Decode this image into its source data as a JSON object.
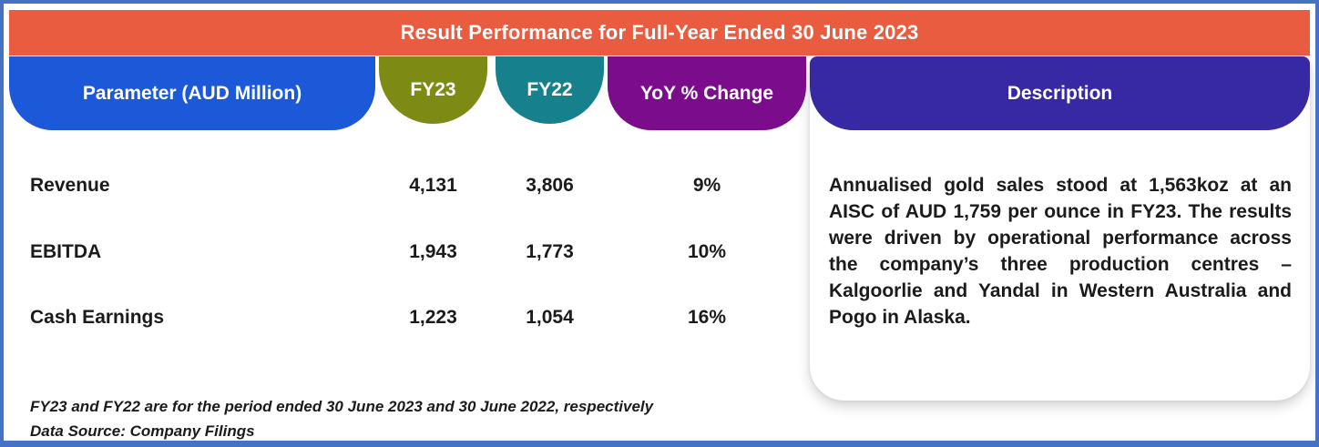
{
  "colors": {
    "frame": "#4472C4",
    "title-bg": "#E95C3F",
    "param-bg": "#1B59D8",
    "fy23-bg": "#7D8B14",
    "fy22-bg": "#17808D",
    "yoy-bg": "#7B0C8C",
    "desc-bg": "#3729A4",
    "text": "#1B1B1B"
  },
  "title": "Result Performance for Full-Year Ended 30 June 2023",
  "table": {
    "headers": {
      "parameter": "Parameter (AUD Million)",
      "fy23": "FY23",
      "fy22": "FY22",
      "yoy": "YoY % Change",
      "description": "Description"
    },
    "rows": [
      {
        "parameter": "Revenue",
        "fy23": "4,131",
        "fy22": "3,806",
        "yoy": "9%"
      },
      {
        "parameter": "EBITDA",
        "fy23": "1,943",
        "fy22": "1,773",
        "yoy": "10%"
      },
      {
        "parameter": "Cash Earnings",
        "fy23": "1,223",
        "fy22": "1,054",
        "yoy": "16%"
      }
    ]
  },
  "description": "Annualised gold sales stood at 1,563koz at an AISC of AUD 1,759 per ounce in FY23. The results were driven by operational performance across the company’s three production centres – Kalgoorlie and Yandal in Western Australia and Pogo in Alaska.",
  "footnotes": [
    "FY23 and FY22 are for the period ended 30 June 2023 and 30 June 2022, respectively",
    "Data Source: Company Filings"
  ],
  "chart_data": {
    "type": "table",
    "title": "Result Performance for Full-Year Ended 30 June 2023",
    "columns": [
      "Parameter (AUD Million)",
      "FY23",
      "FY22",
      "YoY % Change"
    ],
    "rows": [
      [
        "Revenue",
        4131,
        3806,
        "9%"
      ],
      [
        "EBITDA",
        1943,
        1773,
        "10%"
      ],
      [
        "Cash Earnings",
        1223,
        1054,
        "16%"
      ]
    ],
    "description_column": "Annualised gold sales stood at 1,563koz at an AISC of AUD 1,759 per ounce in FY23. The results were driven by operational performance across the company’s three production centres – Kalgoorlie and Yandal in Western Australia and Pogo in Alaska.",
    "notes": [
      "FY23 and FY22 are for the period ended 30 June 2023 and 30 June 2022, respectively",
      "Data Source: Company Filings"
    ]
  }
}
